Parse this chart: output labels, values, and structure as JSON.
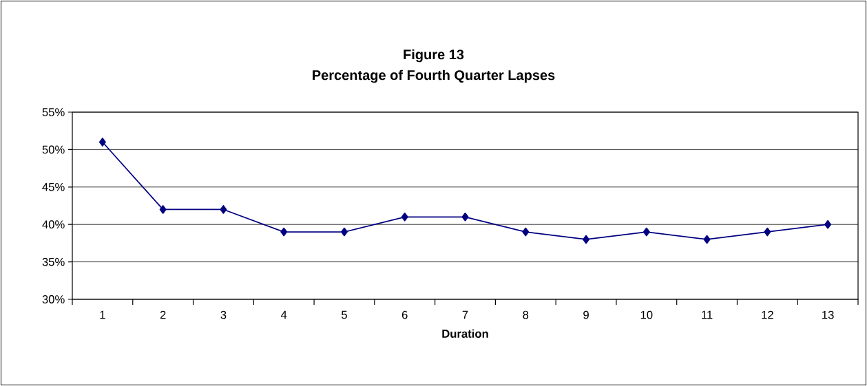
{
  "chart_data": {
    "type": "line",
    "title": "Figure 13",
    "subtitle": "Percentage of Fourth Quarter Lapses",
    "xlabel": "Duration",
    "categories": [
      "1",
      "2",
      "3",
      "4",
      "5",
      "6",
      "7",
      "8",
      "9",
      "10",
      "11",
      "12",
      "13"
    ],
    "series": [
      {
        "color": "#000080",
        "values": [
          51,
          42,
          42,
          39,
          39,
          41,
          41,
          39,
          38,
          39,
          38,
          39,
          40
        ]
      }
    ],
    "ylim": [
      30,
      55
    ],
    "yticks": [
      {
        "value": 30,
        "label": "30%"
      },
      {
        "value": 35,
        "label": "35%"
      },
      {
        "value": 40,
        "label": "40%"
      },
      {
        "value": 45,
        "label": "45%"
      },
      {
        "value": 50,
        "label": "50%"
      },
      {
        "value": 55,
        "label": "55%"
      }
    ],
    "grid": "y",
    "marker": "diamond",
    "line_style": "solid"
  }
}
